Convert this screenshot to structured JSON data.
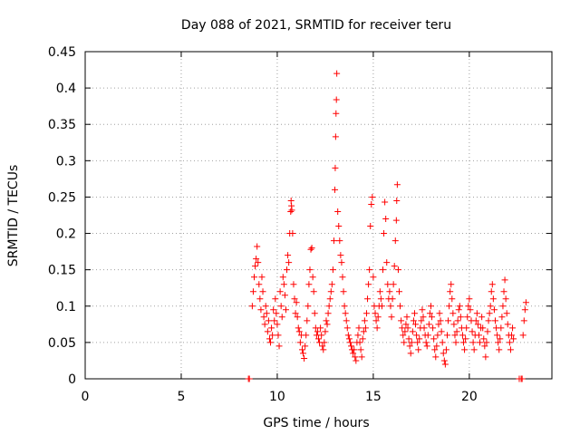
{
  "chart_data": {
    "type": "scatter",
    "title": "Day 088 of 2021, SRMTID for receiver teru",
    "xlabel": "GPS time / hours",
    "ylabel": "SRMTID / TECUs",
    "xlim": [
      0,
      24.3
    ],
    "ylim": [
      0,
      0.45
    ],
    "xticks": [
      0,
      5,
      10,
      15,
      20
    ],
    "yticks": [
      0,
      0.05,
      0.1,
      0.15,
      0.2,
      0.25,
      0.3,
      0.35,
      0.4,
      0.45
    ],
    "xtick_labels": [
      "0",
      "5",
      "10",
      "15",
      "20"
    ],
    "ytick_labels": [
      "0",
      "0.05",
      "0.1",
      "0.15",
      "0.2",
      "0.25",
      "0.3",
      "0.35",
      "0.4",
      "0.45"
    ],
    "grid": true,
    "marker": "+",
    "color": "#ff0000",
    "series": [
      {
        "name": "SRMTID",
        "points": [
          [
            8.5,
            0
          ],
          [
            8.55,
            0
          ],
          [
            22.6,
            0
          ],
          [
            22.7,
            0
          ],
          [
            22.75,
            0
          ],
          [
            8.7,
            0.1
          ],
          [
            8.75,
            0.12
          ],
          [
            8.8,
            0.14
          ],
          [
            8.85,
            0.155
          ],
          [
            8.9,
            0.165
          ],
          [
            8.95,
            0.182
          ],
          [
            9.0,
            0.16
          ],
          [
            9.05,
            0.13
          ],
          [
            9.1,
            0.11
          ],
          [
            9.15,
            0.095
          ],
          [
            9.2,
            0.14
          ],
          [
            9.25,
            0.12
          ],
          [
            9.3,
            0.085
          ],
          [
            9.35,
            0.075
          ],
          [
            9.4,
            0.1
          ],
          [
            9.45,
            0.09
          ],
          [
            9.5,
            0.065
          ],
          [
            9.55,
            0.08
          ],
          [
            9.6,
            0.055
          ],
          [
            9.65,
            0.05
          ],
          [
            9.7,
            0.07
          ],
          [
            9.75,
            0.06
          ],
          [
            9.8,
            0.095
          ],
          [
            9.85,
            0.08
          ],
          [
            9.9,
            0.11
          ],
          [
            9.95,
            0.09
          ],
          [
            10.0,
            0.075
          ],
          [
            10.05,
            0.06
          ],
          [
            10.1,
            0.045
          ],
          [
            10.15,
            0.12
          ],
          [
            10.2,
            0.1
          ],
          [
            10.25,
            0.085
          ],
          [
            10.3,
            0.14
          ],
          [
            10.35,
            0.13
          ],
          [
            10.4,
            0.115
          ],
          [
            10.45,
            0.095
          ],
          [
            10.5,
            0.15
          ],
          [
            10.55,
            0.17
          ],
          [
            10.6,
            0.16
          ],
          [
            10.65,
            0.2
          ],
          [
            10.7,
            0.23
          ],
          [
            10.72,
            0.245
          ],
          [
            10.74,
            0.238
          ],
          [
            10.76,
            0.232
          ],
          [
            10.8,
            0.2
          ],
          [
            10.85,
            0.13
          ],
          [
            10.9,
            0.11
          ],
          [
            10.95,
            0.09
          ],
          [
            11.0,
            0.105
          ],
          [
            11.05,
            0.085
          ],
          [
            11.1,
            0.07
          ],
          [
            11.15,
            0.065
          ],
          [
            11.2,
            0.05
          ],
          [
            11.25,
            0.06
          ],
          [
            11.3,
            0.04
          ],
          [
            11.35,
            0.035
          ],
          [
            11.4,
            0.028
          ],
          [
            11.45,
            0.045
          ],
          [
            11.5,
            0.06
          ],
          [
            11.55,
            0.08
          ],
          [
            11.6,
            0.1
          ],
          [
            11.65,
            0.13
          ],
          [
            11.7,
            0.15
          ],
          [
            11.75,
            0.178
          ],
          [
            11.8,
            0.18
          ],
          [
            11.85,
            0.14
          ],
          [
            11.9,
            0.12
          ],
          [
            11.95,
            0.09
          ],
          [
            12.0,
            0.07
          ],
          [
            12.05,
            0.06
          ],
          [
            12.1,
            0.065
          ],
          [
            12.15,
            0.055
          ],
          [
            12.2,
            0.05
          ],
          [
            12.25,
            0.07
          ],
          [
            12.3,
            0.06
          ],
          [
            12.35,
            0.045
          ],
          [
            12.4,
            0.04
          ],
          [
            12.45,
            0.05
          ],
          [
            12.5,
            0.065
          ],
          [
            12.55,
            0.08
          ],
          [
            12.6,
            0.075
          ],
          [
            12.65,
            0.09
          ],
          [
            12.7,
            0.1
          ],
          [
            12.75,
            0.11
          ],
          [
            12.8,
            0.12
          ],
          [
            12.85,
            0.13
          ],
          [
            12.9,
            0.15
          ],
          [
            12.95,
            0.19
          ],
          [
            13.0,
            0.26
          ],
          [
            13.02,
            0.29
          ],
          [
            13.04,
            0.333
          ],
          [
            13.06,
            0.365
          ],
          [
            13.08,
            0.384
          ],
          [
            13.1,
            0.42
          ],
          [
            13.15,
            0.23
          ],
          [
            13.2,
            0.21
          ],
          [
            13.25,
            0.19
          ],
          [
            13.3,
            0.17
          ],
          [
            13.35,
            0.16
          ],
          [
            13.4,
            0.14
          ],
          [
            13.45,
            0.12
          ],
          [
            13.5,
            0.1
          ],
          [
            13.55,
            0.09
          ],
          [
            13.6,
            0.08
          ],
          [
            13.65,
            0.07
          ],
          [
            13.7,
            0.06
          ],
          [
            13.75,
            0.055
          ],
          [
            13.8,
            0.05
          ],
          [
            13.85,
            0.045
          ],
          [
            13.9,
            0.04
          ],
          [
            13.95,
            0.035
          ],
          [
            14.0,
            0.04
          ],
          [
            14.05,
            0.03
          ],
          [
            14.1,
            0.025
          ],
          [
            14.15,
            0.05
          ],
          [
            14.2,
            0.06
          ],
          [
            14.25,
            0.07
          ],
          [
            14.3,
            0.05
          ],
          [
            14.35,
            0.04
          ],
          [
            14.4,
            0.03
          ],
          [
            14.45,
            0.055
          ],
          [
            14.5,
            0.065
          ],
          [
            14.55,
            0.08
          ],
          [
            14.6,
            0.07
          ],
          [
            14.65,
            0.09
          ],
          [
            14.7,
            0.11
          ],
          [
            14.75,
            0.13
          ],
          [
            14.8,
            0.15
          ],
          [
            14.85,
            0.21
          ],
          [
            14.9,
            0.24
          ],
          [
            14.95,
            0.25
          ],
          [
            15.0,
            0.14
          ],
          [
            15.05,
            0.1
          ],
          [
            15.1,
            0.09
          ],
          [
            15.15,
            0.08
          ],
          [
            15.2,
            0.07
          ],
          [
            15.25,
            0.085
          ],
          [
            15.3,
            0.1
          ],
          [
            15.35,
            0.12
          ],
          [
            15.4,
            0.11
          ],
          [
            15.45,
            0.1
          ],
          [
            15.5,
            0.15
          ],
          [
            15.55,
            0.2
          ],
          [
            15.6,
            0.243
          ],
          [
            15.65,
            0.22
          ],
          [
            15.7,
            0.16
          ],
          [
            15.75,
            0.13
          ],
          [
            15.8,
            0.11
          ],
          [
            15.85,
            0.12
          ],
          [
            15.9,
            0.1
          ],
          [
            15.95,
            0.085
          ],
          [
            16.0,
            0.11
          ],
          [
            16.05,
            0.13
          ],
          [
            16.1,
            0.155
          ],
          [
            16.15,
            0.19
          ],
          [
            16.2,
            0.218
          ],
          [
            16.22,
            0.245
          ],
          [
            16.25,
            0.267
          ],
          [
            16.3,
            0.15
          ],
          [
            16.35,
            0.12
          ],
          [
            16.4,
            0.1
          ],
          [
            16.45,
            0.08
          ],
          [
            16.5,
            0.07
          ],
          [
            16.55,
            0.06
          ],
          [
            16.6,
            0.05
          ],
          [
            16.65,
            0.065
          ],
          [
            16.7,
            0.075
          ],
          [
            16.75,
            0.085
          ],
          [
            16.8,
            0.07
          ],
          [
            16.85,
            0.055
          ],
          [
            16.9,
            0.045
          ],
          [
            16.95,
            0.035
          ],
          [
            17.0,
            0.05
          ],
          [
            17.05,
            0.065
          ],
          [
            17.1,
            0.08
          ],
          [
            17.15,
            0.09
          ],
          [
            17.2,
            0.075
          ],
          [
            17.25,
            0.06
          ],
          [
            17.3,
            0.05
          ],
          [
            17.35,
            0.04
          ],
          [
            17.4,
            0.055
          ],
          [
            17.45,
            0.07
          ],
          [
            17.5,
            0.08
          ],
          [
            17.55,
            0.095
          ],
          [
            17.6,
            0.085
          ],
          [
            17.65,
            0.07
          ],
          [
            17.7,
            0.06
          ],
          [
            17.75,
            0.05
          ],
          [
            17.8,
            0.045
          ],
          [
            17.85,
            0.06
          ],
          [
            17.9,
            0.075
          ],
          [
            17.95,
            0.09
          ],
          [
            18.0,
            0.1
          ],
          [
            18.05,
            0.085
          ],
          [
            18.1,
            0.07
          ],
          [
            18.15,
            0.055
          ],
          [
            18.2,
            0.04
          ],
          [
            18.25,
            0.03
          ],
          [
            18.3,
            0.045
          ],
          [
            18.35,
            0.06
          ],
          [
            18.4,
            0.075
          ],
          [
            18.45,
            0.09
          ],
          [
            18.5,
            0.08
          ],
          [
            18.55,
            0.065
          ],
          [
            18.6,
            0.05
          ],
          [
            18.65,
            0.035
          ],
          [
            18.7,
            0.025
          ],
          [
            18.75,
            0.02
          ],
          [
            18.8,
            0.04
          ],
          [
            18.85,
            0.06
          ],
          [
            18.9,
            0.08
          ],
          [
            18.95,
            0.1
          ],
          [
            19.0,
            0.12
          ],
          [
            19.05,
            0.13
          ],
          [
            19.1,
            0.11
          ],
          [
            19.15,
            0.09
          ],
          [
            19.2,
            0.075
          ],
          [
            19.25,
            0.06
          ],
          [
            19.3,
            0.05
          ],
          [
            19.35,
            0.065
          ],
          [
            19.4,
            0.08
          ],
          [
            19.45,
            0.095
          ],
          [
            19.5,
            0.1
          ],
          [
            19.55,
            0.085
          ],
          [
            19.6,
            0.07
          ],
          [
            19.65,
            0.06
          ],
          [
            19.7,
            0.05
          ],
          [
            19.75,
            0.04
          ],
          [
            19.8,
            0.055
          ],
          [
            19.85,
            0.07
          ],
          [
            19.9,
            0.085
          ],
          [
            19.95,
            0.1
          ],
          [
            20.0,
            0.11
          ],
          [
            20.05,
            0.095
          ],
          [
            20.1,
            0.08
          ],
          [
            20.15,
            0.065
          ],
          [
            20.2,
            0.05
          ],
          [
            20.25,
            0.04
          ],
          [
            20.3,
            0.06
          ],
          [
            20.35,
            0.08
          ],
          [
            20.4,
            0.09
          ],
          [
            20.45,
            0.075
          ],
          [
            20.5,
            0.06
          ],
          [
            20.55,
            0.05
          ],
          [
            20.6,
            0.07
          ],
          [
            20.65,
            0.085
          ],
          [
            20.7,
            0.07
          ],
          [
            20.75,
            0.055
          ],
          [
            20.8,
            0.045
          ],
          [
            20.85,
            0.03
          ],
          [
            20.9,
            0.05
          ],
          [
            20.95,
            0.065
          ],
          [
            21.0,
            0.08
          ],
          [
            21.05,
            0.09
          ],
          [
            21.1,
            0.1
          ],
          [
            21.15,
            0.12
          ],
          [
            21.2,
            0.13
          ],
          [
            21.25,
            0.11
          ],
          [
            21.3,
            0.095
          ],
          [
            21.35,
            0.08
          ],
          [
            21.4,
            0.07
          ],
          [
            21.45,
            0.06
          ],
          [
            21.5,
            0.05
          ],
          [
            21.55,
            0.04
          ],
          [
            21.6,
            0.055
          ],
          [
            21.65,
            0.07
          ],
          [
            21.7,
            0.085
          ],
          [
            21.75,
            0.1
          ],
          [
            21.8,
            0.12
          ],
          [
            21.85,
            0.136
          ],
          [
            21.9,
            0.11
          ],
          [
            21.95,
            0.09
          ],
          [
            22.0,
            0.075
          ],
          [
            22.05,
            0.06
          ],
          [
            22.1,
            0.05
          ],
          [
            22.15,
            0.04
          ],
          [
            22.2,
            0.06
          ],
          [
            22.25,
            0.07
          ],
          [
            22.3,
            0.055
          ],
          [
            22.8,
            0.06
          ],
          [
            22.85,
            0.08
          ],
          [
            22.9,
            0.095
          ],
          [
            22.95,
            0.105
          ]
        ]
      }
    ]
  }
}
